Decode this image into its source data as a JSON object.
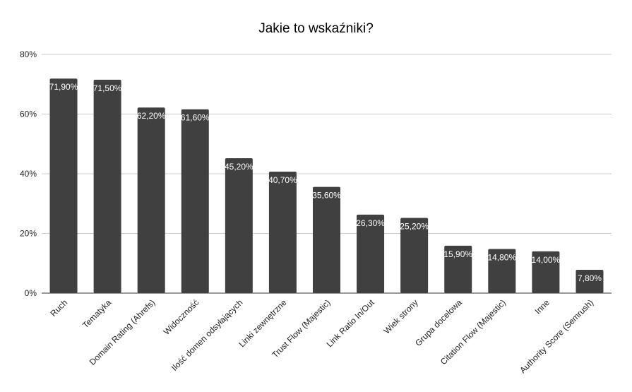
{
  "chart_data": {
    "type": "bar",
    "title": "Jakie to wskaźniki?",
    "xlabel": "",
    "ylabel": "",
    "ylim": [
      0,
      80
    ],
    "yticks": [
      "0%",
      "20%",
      "40%",
      "60%",
      "80%"
    ],
    "grid": true,
    "legend": "none",
    "bar_color": "#404040",
    "categories": [
      "Ruch",
      "Tematyka",
      "Domain Rating (Ahrefs)",
      "Widoczność",
      "Ilość domen odsyłających",
      "Linki zewnętrzne",
      "Trust Flow (Majestic)",
      "Link Ratio In/Out",
      "Wiek strony",
      "Grupa docelowa",
      "Citation Flow (Majestic)",
      "Inne",
      "Authority Score (Semrush)"
    ],
    "values": [
      71.9,
      71.5,
      62.2,
      61.6,
      45.2,
      40.7,
      35.6,
      26.3,
      25.2,
      15.9,
      14.8,
      14.0,
      7.8
    ],
    "data_labels": [
      "71,90%",
      "71,50%",
      "62,20%",
      "61,60%",
      "45,20%",
      "40,70%",
      "35,60%",
      "26,30%",
      "25,20%",
      "15,90%",
      "14,80%",
      "14,00%",
      "7,80%"
    ]
  }
}
